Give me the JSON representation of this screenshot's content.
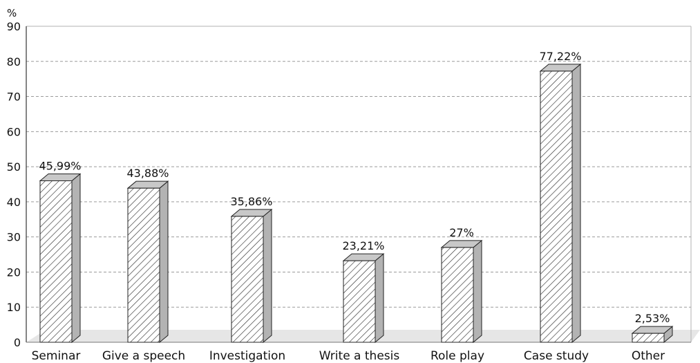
{
  "chart_data": {
    "type": "bar",
    "ylabel": "%",
    "ylim": [
      0,
      90
    ],
    "yticks": [
      0,
      10,
      20,
      30,
      40,
      50,
      60,
      70,
      80,
      90
    ],
    "grid": true,
    "categories": [
      "Seminar",
      "Give a speech",
      "Investigation",
      "Write a thesis",
      "Role play",
      "Case study",
      "Other"
    ],
    "values": [
      45.99,
      43.88,
      35.86,
      23.21,
      27,
      77.22,
      2.53
    ],
    "value_labels": [
      "45,99%",
      "43,88%",
      "35,86%",
      "23,21%",
      "27%",
      "77,22%",
      "2,53%"
    ],
    "colors": {
      "bar_face": "#ffffff",
      "bar_hatch": "#333333",
      "bar_side": "#b3b3b3",
      "bar_top": "#c8c8c8",
      "grid": "#9a9a9a",
      "floor": "#e6e6e6"
    }
  }
}
